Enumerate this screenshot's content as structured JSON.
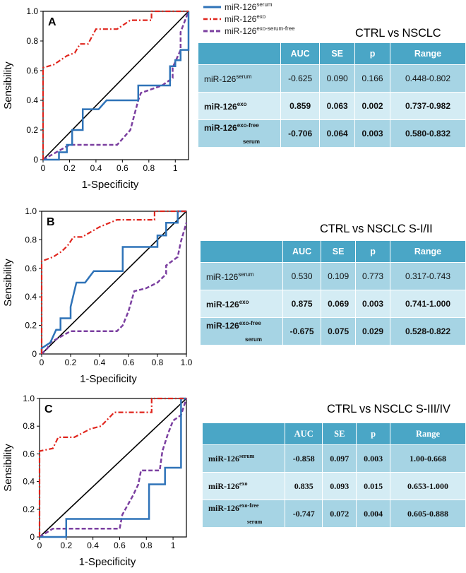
{
  "legend": {
    "serum": {
      "base": "miR-126",
      "sup": "serum",
      "color": "#2f73b8"
    },
    "exo": {
      "base": "miR-126",
      "sup": "exo",
      "color": "#e0251d"
    },
    "free": {
      "base": "miR-126",
      "sup": "exo-serum-free",
      "color": "#7b3fa0"
    }
  },
  "table_header": {
    "c0": "",
    "c1": "AUC",
    "c2": "SE",
    "c3": "p",
    "c4": "Range"
  },
  "panels": [
    {
      "label": "A",
      "title": "CTRL vs NSCLC",
      "rows": [
        {
          "base": "miR-126",
          "sup": "serum",
          "sub": "",
          "auc": "-0.625",
          "se": "0.090",
          "p": "0.166",
          "range": "0.448-0.802"
        },
        {
          "base": "miR-126",
          "sup": "exo",
          "sub": "",
          "auc": "0.859",
          "se": "0.063",
          "p": "0.002",
          "range": "0.737-0.982"
        },
        {
          "base": "miR-126",
          "sup": "exo-free",
          "sub": "serum",
          "auc": "-0.706",
          "se": "0.064",
          "p": "0.003",
          "range": "0.580-0.832"
        }
      ]
    },
    {
      "label": "B",
      "title": "CTRL vs NSCLC S-I/II",
      "rows": [
        {
          "base": "miR-126",
          "sup": "serum",
          "sub": "",
          "auc": "0.530",
          "se": "0.109",
          "p": "0.773",
          "range": "0.317-0.743"
        },
        {
          "base": "miR-126",
          "sup": "exo",
          "sub": "",
          "auc": "0.875",
          "se": "0.069",
          "p": "0.003",
          "range": "0.741-1.000"
        },
        {
          "base": "miR-126",
          "sup": "exo-free",
          "sub": "serum",
          "auc": "-0.675",
          "se": "0.075",
          "p": "0.029",
          "range": "0.528-0.822"
        }
      ]
    },
    {
      "label": "C",
      "title": "CTRL vs NSCLC S-III/IV",
      "rows": [
        {
          "base": "miR-126",
          "sup": "serum",
          "sub": "",
          "auc": "-0.858",
          "se": "0.097",
          "p": "0.003",
          "range": "1.00-0.668"
        },
        {
          "base": "miR-126",
          "sup": "exo",
          "sub": "",
          "auc": "0.835",
          "se": "0.093",
          "p": "0.015",
          "range": "0.653-1.000"
        },
        {
          "base": "miR-126",
          "sup": "exo-free",
          "sub": "serum",
          "auc": "-0.747",
          "se": "0.072",
          "p": "0.004",
          "range": "0.605-0.888"
        }
      ]
    }
  ],
  "chart_data": [
    {
      "type": "line",
      "panel": "A",
      "xlabel": "1-Specificity",
      "ylabel": "Sensibility",
      "xlim": [
        0,
        1.1
      ],
      "ylim": [
        0,
        1.0
      ],
      "xticks": [
        0,
        0.2,
        0.4,
        0.6,
        0.8,
        1
      ],
      "yticks": [
        0,
        0.2,
        0.4,
        0.6,
        0.8,
        1.0
      ],
      "tick_labels": {
        "x": [
          "0",
          "0.2",
          "0.4",
          "0.6",
          "0.8",
          "1"
        ],
        "y": [
          "0",
          "0.2",
          "0.4",
          "0.6",
          "0.8",
          "1.0"
        ]
      },
      "diagonal": true,
      "series": [
        {
          "name": "serum",
          "points": [
            [
              0,
              0
            ],
            [
              0.12,
              0
            ],
            [
              0.12,
              0.05
            ],
            [
              0.18,
              0.05
            ],
            [
              0.18,
              0.1
            ],
            [
              0.22,
              0.1
            ],
            [
              0.22,
              0.2
            ],
            [
              0.3,
              0.2
            ],
            [
              0.3,
              0.34
            ],
            [
              0.42,
              0.34
            ],
            [
              0.48,
              0.4
            ],
            [
              0.72,
              0.4
            ],
            [
              0.72,
              0.5
            ],
            [
              0.96,
              0.5
            ],
            [
              0.96,
              0.63
            ],
            [
              1.0,
              0.63
            ],
            [
              1.0,
              0.67
            ],
            [
              1.04,
              0.67
            ],
            [
              1.04,
              0.74
            ],
            [
              1.1,
              0.74
            ],
            [
              1.1,
              1.0
            ]
          ]
        },
        {
          "name": "exo",
          "points": [
            [
              0,
              0
            ],
            [
              0,
              0.62
            ],
            [
              0.08,
              0.64
            ],
            [
              0.18,
              0.7
            ],
            [
              0.24,
              0.72
            ],
            [
              0.28,
              0.78
            ],
            [
              0.34,
              0.78
            ],
            [
              0.4,
              0.88
            ],
            [
              0.56,
              0.88
            ],
            [
              0.66,
              0.94
            ],
            [
              0.82,
              0.94
            ],
            [
              0.82,
              1.0
            ],
            [
              1.1,
              1.0
            ]
          ]
        },
        {
          "name": "free",
          "points": [
            [
              0,
              0
            ],
            [
              0.1,
              0.05
            ],
            [
              0.2,
              0.1
            ],
            [
              0.56,
              0.1
            ],
            [
              0.66,
              0.2
            ],
            [
              0.72,
              0.4
            ],
            [
              0.74,
              0.45
            ],
            [
              0.9,
              0.5
            ],
            [
              0.98,
              0.55
            ],
            [
              0.98,
              0.62
            ],
            [
              1.04,
              0.74
            ],
            [
              1.04,
              0.86
            ],
            [
              1.1,
              1.0
            ]
          ]
        }
      ]
    },
    {
      "type": "line",
      "panel": "B",
      "xlabel": "1-Specificity",
      "ylabel": "Sensibility",
      "xlim": [
        0,
        1.0
      ],
      "ylim": [
        0,
        1.0
      ],
      "xticks": [
        0,
        0.2,
        0.4,
        0.6,
        0.8,
        1.0
      ],
      "yticks": [
        0,
        0.2,
        0.4,
        0.6,
        0.8,
        1.0
      ],
      "tick_labels": {
        "x": [
          "0",
          "0.2",
          "0.4",
          "0.6",
          "0.8",
          "1.0"
        ],
        "y": [
          "0",
          "0.2",
          "0.4",
          "0.6",
          "0.8",
          "1.0"
        ]
      },
      "diagonal": true,
      "series": [
        {
          "name": "serum",
          "points": [
            [
              0,
              0
            ],
            [
              0,
              0.04
            ],
            [
              0.06,
              0.08
            ],
            [
              0.1,
              0.17
            ],
            [
              0.13,
              0.17
            ],
            [
              0.13,
              0.25
            ],
            [
              0.2,
              0.25
            ],
            [
              0.2,
              0.33
            ],
            [
              0.24,
              0.5
            ],
            [
              0.3,
              0.5
            ],
            [
              0.36,
              0.58
            ],
            [
              0.56,
              0.58
            ],
            [
              0.56,
              0.75
            ],
            [
              0.8,
              0.75
            ],
            [
              0.8,
              0.83
            ],
            [
              0.86,
              0.83
            ],
            [
              0.86,
              0.92
            ],
            [
              0.94,
              0.92
            ],
            [
              0.94,
              1.0
            ],
            [
              1.0,
              1.0
            ]
          ]
        },
        {
          "name": "exo",
          "points": [
            [
              0,
              0
            ],
            [
              0,
              0.65
            ],
            [
              0.08,
              0.68
            ],
            [
              0.14,
              0.72
            ],
            [
              0.18,
              0.76
            ],
            [
              0.22,
              0.82
            ],
            [
              0.28,
              0.82
            ],
            [
              0.4,
              0.89
            ],
            [
              0.52,
              0.94
            ],
            [
              0.78,
              0.94
            ],
            [
              0.78,
              1.0
            ],
            [
              1.0,
              1.0
            ]
          ]
        },
        {
          "name": "free",
          "points": [
            [
              0,
              0
            ],
            [
              0.04,
              0.04
            ],
            [
              0.06,
              0.08
            ],
            [
              0.2,
              0.16
            ],
            [
              0.52,
              0.16
            ],
            [
              0.56,
              0.2
            ],
            [
              0.6,
              0.3
            ],
            [
              0.64,
              0.44
            ],
            [
              0.72,
              0.46
            ],
            [
              0.8,
              0.5
            ],
            [
              0.86,
              0.56
            ],
            [
              0.86,
              0.62
            ],
            [
              0.94,
              0.68
            ],
            [
              0.96,
              0.78
            ],
            [
              1.0,
              0.92
            ]
          ]
        }
      ]
    },
    {
      "type": "line",
      "panel": "C",
      "xlabel": "1-Specificity",
      "ylabel": "Sensibility",
      "xlim": [
        0,
        1.1
      ],
      "ylim": [
        0,
        1.0
      ],
      "xticks": [
        0,
        0.2,
        0.4,
        0.6,
        0.8,
        1
      ],
      "yticks": [
        0,
        0.2,
        0.4,
        0.6,
        0.8,
        1.0
      ],
      "tick_labels": {
        "x": [
          "0",
          "0.2",
          "0.4",
          "0.6",
          "0.8",
          "1"
        ],
        "y": [
          "0",
          "0.2",
          "0.4",
          "0.6",
          "0.8",
          "1.0"
        ]
      },
      "diagonal": true,
      "series": [
        {
          "name": "serum",
          "points": [
            [
              0,
              0
            ],
            [
              0.2,
              0
            ],
            [
              0.2,
              0.13
            ],
            [
              0.82,
              0.13
            ],
            [
              0.82,
              0.38
            ],
            [
              0.94,
              0.38
            ],
            [
              0.94,
              0.5
            ],
            [
              1.06,
              0.5
            ],
            [
              1.06,
              1.0
            ],
            [
              1.1,
              1.0
            ]
          ]
        },
        {
          "name": "exo",
          "points": [
            [
              0,
              0
            ],
            [
              0,
              0.62
            ],
            [
              0.1,
              0.64
            ],
            [
              0.14,
              0.72
            ],
            [
              0.26,
              0.72
            ],
            [
              0.38,
              0.78
            ],
            [
              0.46,
              0.8
            ],
            [
              0.56,
              0.9
            ],
            [
              0.84,
              0.9
            ],
            [
              0.84,
              1.0
            ],
            [
              1.1,
              1.0
            ]
          ]
        },
        {
          "name": "free",
          "points": [
            [
              0,
              0
            ],
            [
              0.1,
              0.06
            ],
            [
              0.6,
              0.06
            ],
            [
              0.62,
              0.16
            ],
            [
              0.7,
              0.3
            ],
            [
              0.74,
              0.38
            ],
            [
              0.76,
              0.48
            ],
            [
              0.9,
              0.48
            ],
            [
              0.92,
              0.62
            ],
            [
              0.96,
              0.74
            ],
            [
              1.0,
              0.84
            ],
            [
              1.06,
              0.88
            ],
            [
              1.1,
              1.0
            ]
          ]
        }
      ]
    }
  ]
}
